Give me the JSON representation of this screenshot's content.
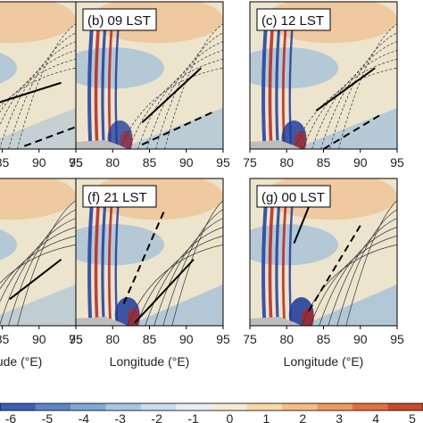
{
  "chart_data": {
    "type": "heatmap",
    "xlabel": "Longitude (°E)",
    "x_tick_labels": [
      "75",
      "80",
      "85",
      "90",
      "95"
    ],
    "xlim": [
      75,
      95
    ],
    "panels": [
      {
        "id": "a",
        "title": "",
        "row": 0,
        "col": 0,
        "plume_lon": 81.0,
        "plume_strength": 0.5,
        "show_xlabel": false,
        "solid_line": [
          [
            78.5,
            0.22
          ],
          [
            93.0,
            0.45
          ]
        ],
        "dashed_line": [
          [
            88.0,
            0.02
          ],
          [
            95.0,
            0.15
          ]
        ]
      },
      {
        "id": "b",
        "title": "(b) 09 LST",
        "row": 0,
        "col": 1,
        "plume_lon": 81.0,
        "plume_strength": 0.7,
        "show_xlabel": false,
        "solid_line": [
          [
            84.0,
            0.18
          ],
          [
            92.0,
            0.55
          ]
        ],
        "dashed_line": [
          [
            84.0,
            0.03
          ],
          [
            94.0,
            0.26
          ]
        ]
      },
      {
        "id": "c",
        "title": "(c) 12 LST",
        "row": 0,
        "col": 2,
        "plume_lon": 81.0,
        "plume_strength": 0.85,
        "show_xlabel": false,
        "solid_line": [
          [
            84.0,
            0.26
          ],
          [
            92.0,
            0.55
          ]
        ],
        "dashed_line": [
          [
            85.0,
            0.0
          ],
          [
            93.0,
            0.24
          ]
        ]
      },
      {
        "id": "e",
        "title": "",
        "row": 1,
        "col": 0,
        "plume_lon": 81.0,
        "plume_strength": 0.6,
        "show_xlabel": true,
        "solid_line": [
          [
            86.0,
            0.18
          ],
          [
            93.0,
            0.45
          ]
        ],
        "dashed_line": null
      },
      {
        "id": "f",
        "title": "(f) 21 LST",
        "row": 1,
        "col": 1,
        "plume_lon": 82.0,
        "plume_strength": 0.9,
        "show_xlabel": true,
        "solid_line": [
          [
            83.0,
            0.02
          ],
          [
            91.0,
            0.45
          ]
        ],
        "dashed_line": [
          [
            81.5,
            0.15
          ],
          [
            87.0,
            0.78
          ]
        ]
      },
      {
        "id": "g",
        "title": "(g) 00 LST",
        "row": 1,
        "col": 2,
        "plume_lon": 82.0,
        "plume_strength": 0.95,
        "show_xlabel": true,
        "solid_line": [
          [
            81.0,
            0.56
          ],
          [
            84.0,
            0.93
          ]
        ],
        "dashed_line": [
          [
            83.0,
            0.1
          ],
          [
            90.0,
            0.68
          ]
        ]
      }
    ],
    "colorbar": {
      "ticks": [
        "-6",
        "-5",
        "-4",
        "-3",
        "-2",
        "-1",
        "0",
        "1",
        "2",
        "3",
        "4",
        "5"
      ],
      "range": [
        -6,
        6
      ],
      "colors": [
        "#3b5eb8",
        "#5a86c7",
        "#7fa8d8",
        "#a6c6e6",
        "#c9ddef",
        "#e6eff5",
        "#f6ecd6",
        "#fad9a8",
        "#f6bd82",
        "#ee9a5e",
        "#e1703f",
        "#cb4a2c"
      ]
    },
    "colors": {
      "neutral": "#ece4cc",
      "warm": "#f3b27a",
      "cool": "#8fb5dc",
      "deep_blue": "#1f3b9c",
      "deep_red": "#b5251f",
      "terrain": "#bdbdbd"
    }
  }
}
